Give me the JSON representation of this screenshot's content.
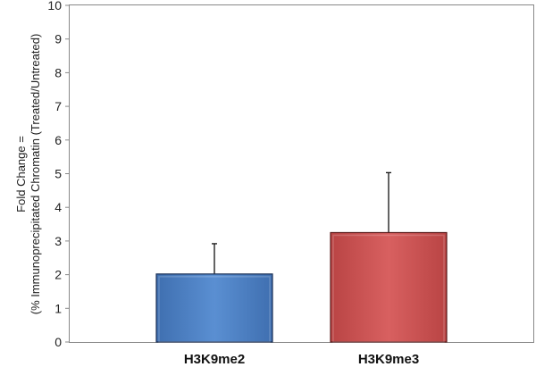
{
  "chart_data": {
    "type": "bar",
    "title": "",
    "xlabel": "",
    "ylabel_lines": [
      "Fold Change =",
      "(% Immunoprecipitated Chromatin (Treated/Untreated)"
    ],
    "categories": [
      "H3K9me2",
      "H3K9me3"
    ],
    "values": [
      2.02,
      3.25
    ],
    "error_upper": [
      0.9,
      1.78
    ],
    "ylim": [
      0,
      10
    ],
    "yticks": [
      0,
      1,
      2,
      3,
      4,
      5,
      6,
      7,
      8,
      9,
      10
    ],
    "grid": false,
    "legend": "none",
    "colors": [
      "#4f81c5",
      "#c95353"
    ],
    "edge_colors": [
      "#1a2f55",
      "#5a1a1a"
    ]
  }
}
